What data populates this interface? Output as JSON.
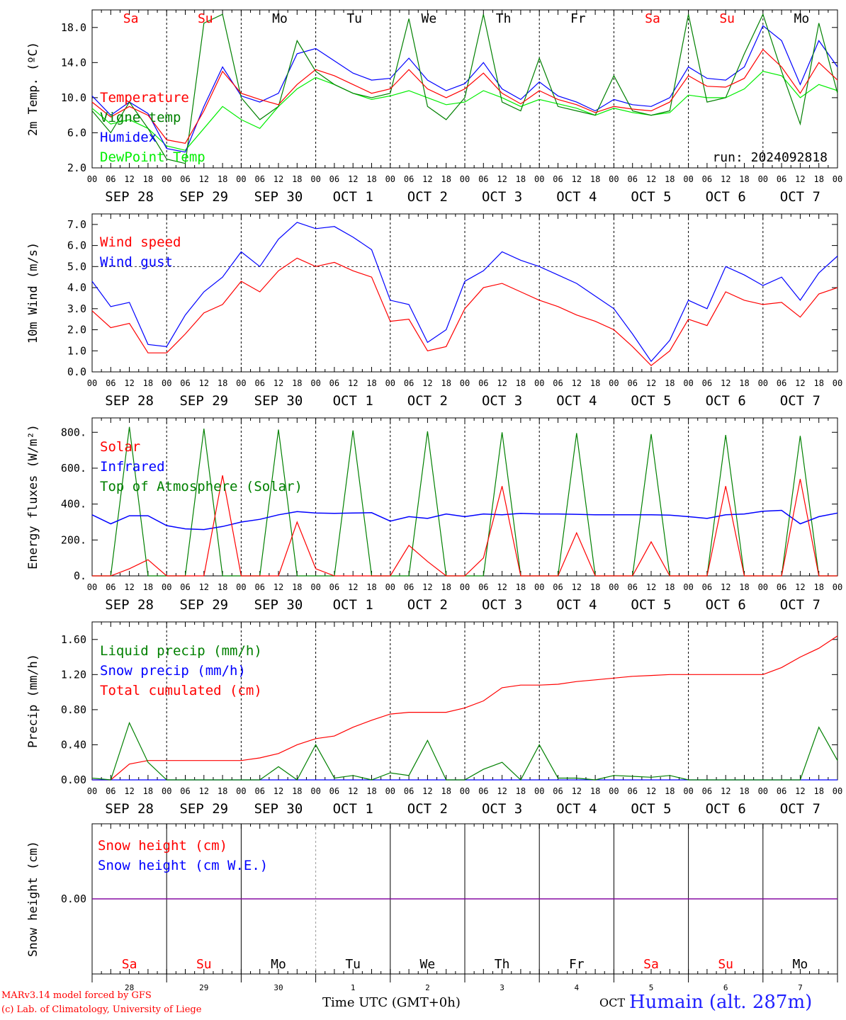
{
  "footer": {
    "credit_line1": "MARv3.14 model forced by GFS",
    "credit_line2": "(c) Lab. of Climatology, University of Liege",
    "time_axis_title": "Time UTC (GMT+0h)",
    "month": "OCT",
    "location": "Humain (alt. 287m)"
  },
  "run_label": "run: 2024092818",
  "colors": {
    "red": "#ff0000",
    "blue": "#0000ff",
    "green": "#008000",
    "lightgreen": "#00ee00",
    "purple": "#8000a0"
  },
  "days": {
    "weekday_labels": [
      "Sa",
      "Su",
      "Mo",
      "Tu",
      "We",
      "Th",
      "Fr",
      "Sa",
      "Su",
      "Mo"
    ],
    "weekday_colors": [
      "#ff0000",
      "#ff0000",
      "#000000",
      "#000000",
      "#000000",
      "#000000",
      "#000000",
      "#ff0000",
      "#ff0000",
      "#000000"
    ],
    "date_labels": [
      "SEP 28",
      "SEP 29",
      "SEP 30",
      "OCT  1",
      "OCT  2",
      "OCT  3",
      "OCT  4",
      "OCT  5",
      "OCT  6",
      "OCT  7"
    ],
    "day_numbers": [
      "28",
      "29",
      "30",
      "1",
      "2",
      "3",
      "4",
      "5",
      "6",
      "7"
    ],
    "hour_labels": [
      "00",
      "06",
      "12",
      "18"
    ],
    "end_hour_label": "00"
  },
  "chart_data": [
    {
      "type": "line",
      "ylabel": "2m Temp. (ºC)",
      "ylim": [
        2,
        20
      ],
      "yticks": [
        "2.0",
        "6.0",
        "10.0",
        "14.0",
        "18.0"
      ],
      "ytick_values": [
        2,
        6,
        10,
        14,
        18
      ],
      "x_hours": [
        0,
        6,
        12,
        18,
        24,
        30,
        36,
        42,
        48,
        54,
        60,
        66,
        72,
        78,
        84,
        90,
        96,
        102,
        108,
        114,
        120,
        126,
        132,
        138,
        144,
        150,
        156,
        162,
        168,
        174,
        180,
        186,
        192,
        198,
        204,
        210,
        216,
        222,
        228,
        234,
        240
      ],
      "series": [
        {
          "name": "Temperature",
          "color": "#ff0000",
          "values": [
            9.5,
            7.8,
            9.0,
            8.0,
            5.2,
            4.8,
            8.5,
            13.0,
            10.5,
            9.8,
            9.2,
            11.5,
            13.2,
            12.5,
            11.5,
            10.5,
            11.0,
            13.2,
            11.0,
            10.0,
            11.0,
            12.8,
            10.5,
            9.3,
            10.8,
            9.8,
            9.2,
            8.3,
            9.0,
            8.7,
            8.5,
            9.5,
            12.5,
            11.3,
            11.2,
            12.2,
            15.5,
            13.5,
            10.5,
            14.0,
            12.0
          ]
        },
        {
          "name": "Vigne temp",
          "color": "#008000",
          "values": [
            8.5,
            6.0,
            9.5,
            6.5,
            3.0,
            2.5,
            18.5,
            19.5,
            10.0,
            7.5,
            9.0,
            16.5,
            13.0,
            11.5,
            10.5,
            10.0,
            10.5,
            19.0,
            9.0,
            7.5,
            10.0,
            19.5,
            9.5,
            8.5,
            14.5,
            9.0,
            8.5,
            8.0,
            12.5,
            8.5,
            8.0,
            8.5,
            19.5,
            9.5,
            10.0,
            15.0,
            19.5,
            13.0,
            7.0,
            18.5,
            10.5
          ]
        },
        {
          "name": "Humidex",
          "color": "#0000ff",
          "values": [
            10.2,
            8.0,
            9.5,
            8.2,
            4.2,
            3.8,
            9.0,
            13.5,
            10.2,
            9.5,
            10.5,
            15.0,
            15.6,
            14.2,
            12.8,
            12.0,
            12.2,
            14.5,
            12.0,
            10.8,
            11.6,
            14.0,
            11.0,
            9.8,
            11.8,
            10.2,
            9.5,
            8.5,
            9.8,
            9.2,
            9.0,
            10.0,
            13.5,
            12.2,
            12.0,
            13.5,
            18.2,
            16.5,
            11.5,
            16.5,
            13.5
          ]
        },
        {
          "name": "DewPoint Temp",
          "color": "#00ee00",
          "values": [
            8.8,
            7.0,
            7.5,
            6.5,
            4.5,
            4.0,
            6.5,
            9.0,
            7.5,
            6.5,
            9.0,
            11.0,
            12.3,
            11.5,
            10.5,
            9.8,
            10.2,
            10.8,
            10.0,
            9.2,
            9.5,
            10.8,
            10.0,
            9.0,
            9.8,
            9.3,
            8.8,
            8.0,
            8.8,
            8.3,
            8.0,
            8.3,
            10.3,
            10.0,
            10.0,
            11.0,
            13.0,
            12.5,
            10.0,
            11.5,
            10.8
          ]
        }
      ]
    },
    {
      "type": "line",
      "ylabel": "10m Wind (m/s)",
      "ylim": [
        0,
        7.5
      ],
      "yticks": [
        "0.0",
        "1.0",
        "2.0",
        "3.0",
        "4.0",
        "5.0",
        "6.0",
        "7.0"
      ],
      "ytick_values": [
        0,
        1,
        2,
        3,
        4,
        5,
        6,
        7
      ],
      "reference_line": 5.0,
      "x_hours": [
        0,
        6,
        12,
        18,
        24,
        30,
        36,
        42,
        48,
        54,
        60,
        66,
        72,
        78,
        84,
        90,
        96,
        102,
        108,
        114,
        120,
        126,
        132,
        138,
        144,
        150,
        156,
        162,
        168,
        174,
        180,
        186,
        192,
        198,
        204,
        210,
        216,
        222,
        228,
        234,
        240
      ],
      "series": [
        {
          "name": "Wind speed",
          "color": "#ff0000",
          "values": [
            2.9,
            2.1,
            2.3,
            0.9,
            0.9,
            1.8,
            2.8,
            3.2,
            4.3,
            3.8,
            4.8,
            5.4,
            5.0,
            5.2,
            4.8,
            4.5,
            2.4,
            2.5,
            1.0,
            1.2,
            3.0,
            4.0,
            4.2,
            3.8,
            3.4,
            3.1,
            2.7,
            2.4,
            2.0,
            1.2,
            0.3,
            1.0,
            2.5,
            2.2,
            3.8,
            3.4,
            3.2,
            3.3,
            2.6,
            3.7,
            4.0
          ]
        },
        {
          "name": "Wind gust",
          "color": "#0000ff",
          "values": [
            4.3,
            3.1,
            3.3,
            1.3,
            1.2,
            2.7,
            3.8,
            4.5,
            5.7,
            5.0,
            6.3,
            7.1,
            6.8,
            6.9,
            6.4,
            5.8,
            3.4,
            3.2,
            1.4,
            2.0,
            4.3,
            4.8,
            5.7,
            5.3,
            5.0,
            4.6,
            4.2,
            3.6,
            3.0,
            1.8,
            0.5,
            1.5,
            3.4,
            3.0,
            5.0,
            4.6,
            4.1,
            4.5,
            3.4,
            4.7,
            5.5
          ]
        }
      ]
    },
    {
      "type": "line",
      "ylabel": "Energy fluxes (W/m²)",
      "ylim": [
        0,
        880
      ],
      "yticks": [
        "0.",
        "200.",
        "400.",
        "600.",
        "800."
      ],
      "ytick_values": [
        0,
        200,
        400,
        600,
        800
      ],
      "x_hours": [
        0,
        6,
        12,
        18,
        24,
        30,
        36,
        42,
        48,
        54,
        60,
        66,
        72,
        78,
        84,
        90,
        96,
        102,
        108,
        114,
        120,
        126,
        132,
        138,
        144,
        150,
        156,
        162,
        168,
        174,
        180,
        186,
        192,
        198,
        204,
        210,
        216,
        222,
        228,
        234,
        240
      ],
      "series": [
        {
          "name": "Solar",
          "color": "#ff0000",
          "values": [
            0,
            0,
            40,
            90,
            0,
            0,
            0,
            560,
            0,
            0,
            0,
            300,
            40,
            0,
            0,
            0,
            0,
            170,
            80,
            0,
            0,
            100,
            500,
            0,
            0,
            0,
            240,
            0,
            0,
            0,
            190,
            0,
            0,
            0,
            500,
            0,
            0,
            0,
            540,
            0,
            0
          ]
        },
        {
          "name": "Infrared",
          "color": "#0000ff",
          "values": [
            340,
            290,
            335,
            335,
            280,
            262,
            258,
            275,
            300,
            315,
            340,
            358,
            350,
            348,
            350,
            352,
            305,
            330,
            320,
            345,
            330,
            345,
            340,
            348,
            345,
            345,
            343,
            340,
            340,
            340,
            340,
            338,
            330,
            320,
            340,
            345,
            360,
            365,
            290,
            330,
            350
          ]
        },
        {
          "name": "Top of Atmosphere (Solar)",
          "color": "#008000",
          "values": [
            0,
            0,
            830,
            0,
            0,
            0,
            820,
            0,
            0,
            0,
            815,
            0,
            0,
            0,
            810,
            0,
            0,
            0,
            805,
            0,
            0,
            0,
            800,
            0,
            0,
            0,
            795,
            0,
            0,
            0,
            790,
            0,
            0,
            0,
            785,
            0,
            0,
            0,
            780,
            0,
            0
          ]
        }
      ]
    },
    {
      "type": "line",
      "ylabel": "Precip (mm/h)",
      "ylim": [
        0,
        1.8
      ],
      "yticks": [
        "0.00",
        "0.40",
        "0.80",
        "1.20",
        "1.60"
      ],
      "ytick_values": [
        0,
        0.4,
        0.8,
        1.2,
        1.6
      ],
      "x_hours": [
        0,
        6,
        12,
        18,
        24,
        30,
        36,
        42,
        48,
        54,
        60,
        66,
        72,
        78,
        84,
        90,
        96,
        102,
        108,
        114,
        120,
        126,
        132,
        138,
        144,
        150,
        156,
        162,
        168,
        174,
        180,
        186,
        192,
        198,
        204,
        210,
        216,
        222,
        228,
        234,
        240
      ],
      "series": [
        {
          "name": "Liquid precip (mm/h)",
          "color": "#008000",
          "values": [
            0.02,
            0.0,
            0.65,
            0.2,
            0.0,
            0.0,
            0.0,
            0.0,
            0.0,
            0.0,
            0.15,
            0.0,
            0.4,
            0.02,
            0.05,
            0.0,
            0.08,
            0.05,
            0.45,
            0.0,
            0.0,
            0.12,
            0.2,
            0.0,
            0.4,
            0.02,
            0.02,
            0.0,
            0.05,
            0.04,
            0.03,
            0.05,
            0.0,
            0.0,
            0.0,
            0.0,
            0.0,
            0.0,
            0.0,
            0.6,
            0.22
          ]
        },
        {
          "name": "Snow precip (mm/h)",
          "color": "#0000ff",
          "values": [
            0,
            0,
            0,
            0,
            0,
            0,
            0,
            0,
            0,
            0,
            0,
            0,
            0,
            0,
            0,
            0,
            0,
            0,
            0,
            0,
            0,
            0,
            0,
            0,
            0,
            0,
            0,
            0,
            0,
            0,
            0,
            0,
            0,
            0,
            0,
            0,
            0,
            0,
            0,
            0,
            0
          ]
        },
        {
          "name": "Total cumulated (cm)",
          "color": "#ff0000",
          "values": [
            0.0,
            0.0,
            0.18,
            0.22,
            0.22,
            0.22,
            0.22,
            0.22,
            0.22,
            0.25,
            0.3,
            0.4,
            0.47,
            0.5,
            0.6,
            0.68,
            0.75,
            0.77,
            0.77,
            0.77,
            0.82,
            0.9,
            1.05,
            1.08,
            1.08,
            1.09,
            1.12,
            1.14,
            1.16,
            1.18,
            1.19,
            1.2,
            1.2,
            1.2,
            1.2,
            1.2,
            1.2,
            1.28,
            1.4,
            1.5,
            1.64
          ]
        }
      ]
    },
    {
      "type": "line",
      "ylabel": "Snow height (cm)",
      "yticks": [
        "0.00"
      ],
      "ytick_values": [
        0
      ],
      "ylim": [
        -1,
        1
      ],
      "x_hours": [
        0,
        240
      ],
      "series": [
        {
          "name": "Snow height (cm)",
          "color": "#ff0000",
          "values": [
            0,
            0
          ]
        },
        {
          "name": "Snow height (cm W.E.)",
          "color": "#0000ff",
          "values": [
            0,
            0
          ]
        }
      ]
    }
  ]
}
